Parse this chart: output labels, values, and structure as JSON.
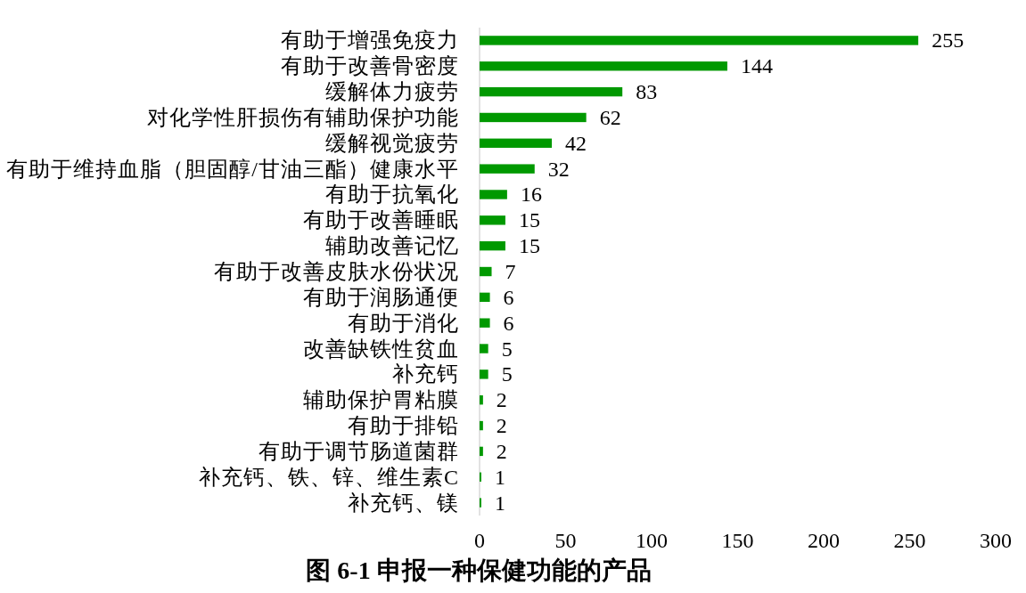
{
  "chart_data": {
    "type": "bar",
    "orientation": "horizontal",
    "title": "图 6-1 申报一种保健功能的产品",
    "categories": [
      "有助于增强免疫力",
      "有助于改善骨密度",
      "缓解体力疲劳",
      "对化学性肝损伤有辅助保护功能",
      "缓解视觉疲劳",
      "有助于维持血脂（胆固醇/甘油三酯）健康水平",
      "有助于抗氧化",
      "有助于改善睡眠",
      "辅助改善记忆",
      "有助于改善皮肤水份状况",
      "有助于润肠通便",
      "有助于消化",
      "改善缺铁性贫血",
      "补充钙",
      "辅助保护胃粘膜",
      "有助于排铅",
      "有助于调节肠道菌群",
      "补充钙、铁、锌、维生素C",
      "补充钙、镁"
    ],
    "values": [
      255,
      144,
      83,
      62,
      42,
      32,
      16,
      15,
      15,
      7,
      6,
      6,
      5,
      5,
      2,
      2,
      2,
      1,
      1
    ],
    "color": "#009900",
    "xlim": [
      0,
      300
    ],
    "xticks": [
      0,
      50,
      100,
      150,
      200,
      250,
      300
    ],
    "data_labels": true
  }
}
